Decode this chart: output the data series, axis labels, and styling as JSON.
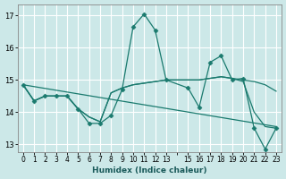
{
  "xlabel": "Humidex (Indice chaleur)",
  "bg_color": "#cce8e8",
  "grid_color": "#ffffff",
  "line_color": "#1a7a6e",
  "xlim": [
    -0.5,
    23.5
  ],
  "ylim": [
    12.75,
    17.35
  ],
  "yticks": [
    13,
    14,
    15,
    16,
    17
  ],
  "xtick_labels": [
    "0",
    "1",
    "2",
    "3",
    "4",
    "5",
    "6",
    "7",
    "8",
    "9",
    "10",
    "11",
    "12",
    "13",
    "",
    "15",
    "16",
    "17",
    "18",
    "19",
    "20",
    "21",
    "22",
    "23"
  ],
  "line1_x": [
    0,
    1,
    2,
    3,
    4,
    5,
    6,
    7,
    8,
    9,
    10,
    11,
    12,
    13,
    15,
    16,
    17,
    18,
    19,
    20,
    21,
    22,
    23
  ],
  "line1_y": [
    14.85,
    14.35,
    14.5,
    14.5,
    14.5,
    14.1,
    13.65,
    13.65,
    13.9,
    14.7,
    16.65,
    17.05,
    16.55,
    15.0,
    14.75,
    14.15,
    15.55,
    15.75,
    15.0,
    15.05,
    13.5,
    12.85,
    13.5
  ],
  "line2_x": [
    0,
    1,
    2,
    3,
    4,
    5,
    6,
    7,
    8,
    9,
    10,
    11,
    12,
    13,
    15,
    16,
    17,
    18,
    19,
    20,
    21,
    22,
    23
  ],
  "line2_y": [
    14.85,
    14.35,
    14.5,
    14.5,
    14.5,
    14.1,
    13.85,
    13.7,
    14.6,
    14.75,
    14.85,
    14.9,
    14.95,
    15.0,
    15.0,
    15.0,
    15.05,
    15.1,
    15.05,
    15.0,
    14.95,
    14.85,
    14.65
  ],
  "line3_x": [
    0,
    1,
    2,
    3,
    4,
    5,
    6,
    7,
    8,
    9,
    10,
    11,
    12,
    13,
    15,
    16,
    17,
    18,
    19,
    20,
    21,
    22,
    23
  ],
  "line3_y": [
    14.85,
    14.35,
    14.5,
    14.5,
    14.5,
    14.1,
    13.85,
    13.7,
    14.6,
    14.75,
    14.85,
    14.9,
    14.95,
    15.0,
    15.0,
    15.0,
    15.05,
    15.1,
    15.05,
    14.95,
    14.0,
    13.55,
    13.5
  ],
  "line4_x": [
    0,
    23
  ],
  "line4_y": [
    14.85,
    13.55
  ]
}
